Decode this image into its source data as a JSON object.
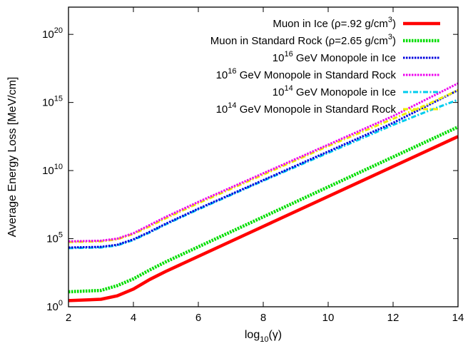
{
  "chart_data": {
    "type": "line",
    "xlabel": "log10(γ)",
    "ylabel": "Average Energy Loss [MeV/cm]",
    "xlim": [
      2,
      14
    ],
    "ylim_log10": [
      0,
      22
    ],
    "yscale": "log",
    "x_ticks": [
      2,
      4,
      6,
      8,
      10,
      12,
      14
    ],
    "y_ticks": [
      {
        "label": "10",
        "exp": "0",
        "value_log10": 0
      },
      {
        "label": "10",
        "exp": "5",
        "value_log10": 5
      },
      {
        "label": "10",
        "exp": "10",
        "value_log10": 10
      },
      {
        "label": "10",
        "exp": "15",
        "value_log10": 15
      },
      {
        "label": "10",
        "exp": "20",
        "value_log10": 20
      }
    ],
    "legend_position": "top-right",
    "grid": false,
    "x": [
      2.0,
      3.0,
      3.5,
      4.0,
      4.5,
      5.0,
      6.0,
      8.0,
      10.0,
      12.0,
      13.0,
      14.0
    ],
    "series": [
      {
        "name": "Muon in Ice (ρ=.92 g/cm³)",
        "color": "#ff0000",
        "style": "solid",
        "y_log10": [
          0.45,
          0.55,
          0.8,
          1.3,
          2.0,
          2.6,
          3.7,
          5.9,
          8.1,
          10.3,
          11.4,
          12.5
        ]
      },
      {
        "name": "Muon in Standard Rock (ρ=2.65 g/cm³)",
        "color": "#00dd00",
        "style": "dotted",
        "y_log10": [
          1.1,
          1.2,
          1.55,
          2.05,
          2.7,
          3.3,
          4.4,
          6.6,
          8.8,
          11.0,
          12.1,
          13.2
        ]
      },
      {
        "name": "10¹⁶ GeV Monopole in Ice",
        "color": "#0000dd",
        "style": "dotted",
        "y_log10": [
          4.35,
          4.4,
          4.55,
          4.95,
          5.5,
          6.1,
          7.2,
          9.3,
          11.4,
          13.5,
          14.7,
          15.9
        ]
      },
      {
        "name": "10¹⁶ GeV Monopole in Standard Rock",
        "color": "#ee00ee",
        "style": "dotted",
        "y_log10": [
          4.8,
          4.85,
          5.0,
          5.4,
          6.0,
          6.6,
          7.7,
          9.8,
          11.9,
          14.0,
          15.2,
          16.4
        ]
      },
      {
        "name": "10¹⁴ GeV Monopole in Ice",
        "color": "#00ccee",
        "style": "dashdot",
        "y_log10": [
          4.3,
          4.35,
          4.5,
          4.9,
          5.45,
          6.05,
          7.15,
          9.25,
          11.3,
          13.35,
          14.3,
          15.2
        ]
      },
      {
        "name": "10¹⁴ GeV Monopole in Standard Rock",
        "color": "#eeee00",
        "style": "dashdot",
        "y_log10": [
          4.75,
          4.8,
          4.95,
          5.35,
          5.9,
          6.5,
          7.6,
          9.7,
          11.8,
          13.8,
          14.8,
          15.9
        ]
      }
    ],
    "legend": [
      {
        "text": "Muon in Ice (ρ=.92 g/cm",
        "sup": "3",
        "tail": ")"
      },
      {
        "text": "Muon in Standard Rock (ρ=2.65 g/cm",
        "sup": "3",
        "tail": ")"
      },
      {
        "pre": "10",
        "sup": "16",
        "text": " GeV Monopole in Ice"
      },
      {
        "pre": "10",
        "sup": "16",
        "text": " GeV Monopole in Standard Rock"
      },
      {
        "pre": "10",
        "sup": "14",
        "text": " GeV Monopole in Ice"
      },
      {
        "pre": "10",
        "sup": "14",
        "text": " GeV Monopole in Standard Rock"
      }
    ]
  }
}
